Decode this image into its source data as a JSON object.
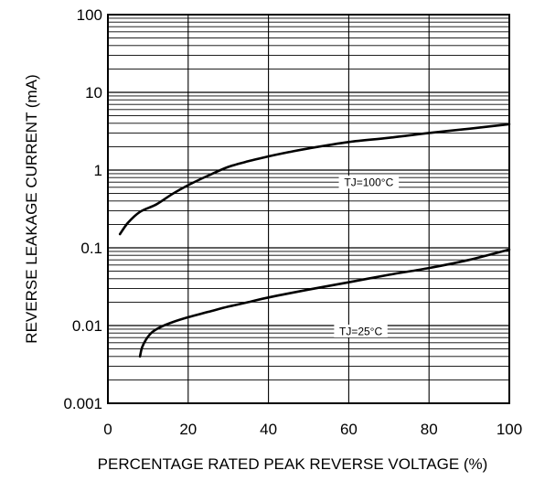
{
  "chart_data": {
    "type": "line",
    "title": "",
    "xlabel": "PERCENTAGE RATED PEAK REVERSE VOLTAGE (%)",
    "ylabel": "REVERSE LEAKAGE CURRENT (mA)",
    "xlim": [
      0,
      100
    ],
    "ylim": [
      0.001,
      100
    ],
    "yscale": "log",
    "grid": true,
    "x_ticks": [
      0,
      20,
      40,
      60,
      80,
      100
    ],
    "x_tick_labels": [
      "0",
      "20",
      "40",
      "60",
      "80",
      "100"
    ],
    "y_ticks": [
      0.001,
      0.01,
      0.1,
      1,
      10,
      100
    ],
    "y_tick_labels": [
      "0.001",
      "0.01",
      "0.1",
      "1",
      "10",
      "100"
    ],
    "series": [
      {
        "name": "TJ=100°C",
        "x": [
          3,
          5,
          8,
          12,
          16,
          20,
          25,
          30,
          35,
          40,
          45,
          50,
          60,
          70,
          80,
          90,
          100
        ],
        "y": [
          0.15,
          0.21,
          0.29,
          0.36,
          0.49,
          0.64,
          0.85,
          1.1,
          1.3,
          1.5,
          1.7,
          1.9,
          2.3,
          2.6,
          3.0,
          3.4,
          3.9
        ]
      },
      {
        "name": "TJ=25°C",
        "x": [
          8,
          8.5,
          9.5,
          11,
          13,
          16,
          20,
          25,
          30,
          35,
          40,
          50,
          60,
          70,
          80,
          90,
          100
        ],
        "y": [
          0.004,
          0.0052,
          0.0066,
          0.0082,
          0.0095,
          0.011,
          0.0128,
          0.015,
          0.0175,
          0.02,
          0.023,
          0.029,
          0.036,
          0.045,
          0.055,
          0.07,
          0.095
        ]
      }
    ],
    "curve_labels": [
      {
        "text": "TJ=100°C",
        "x": 65,
        "y": 0.7
      },
      {
        "text": "TJ=25°C",
        "x": 63,
        "y": 0.0085
      }
    ]
  }
}
